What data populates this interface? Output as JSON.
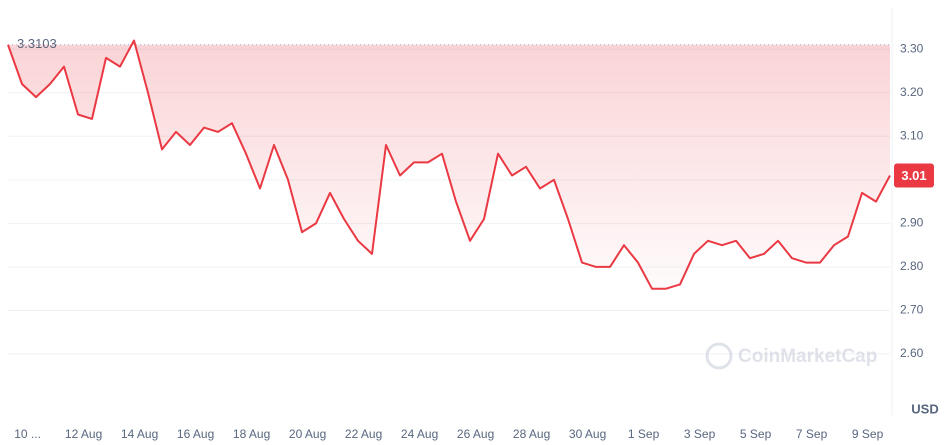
{
  "chart_data": {
    "type": "line",
    "watermark": "CoinMarketCap",
    "currency": "USD",
    "color": "#ea3943",
    "values": [
      3.31,
      3.22,
      3.19,
      3.22,
      3.26,
      3.15,
      3.14,
      3.28,
      3.26,
      3.32,
      3.2,
      3.07,
      3.11,
      3.08,
      3.12,
      3.11,
      3.13,
      3.06,
      2.98,
      3.08,
      3.0,
      2.88,
      2.9,
      2.97,
      2.91,
      2.86,
      2.83,
      3.08,
      3.01,
      3.04,
      3.04,
      3.06,
      2.95,
      2.86,
      2.91,
      3.06,
      3.01,
      3.03,
      2.98,
      3.0,
      2.91,
      2.81,
      2.8,
      2.8,
      2.85,
      2.81,
      2.75,
      2.75,
      2.76,
      2.83,
      2.86,
      2.85,
      2.86,
      2.82,
      2.83,
      2.86,
      2.82,
      2.81,
      2.81,
      2.85,
      2.87,
      2.97,
      2.95,
      3.01
    ],
    "reference_value": 3.3103,
    "xlim": [
      0,
      63
    ],
    "xticks": [
      {
        "value": 1.4,
        "label": "10 ..."
      },
      {
        "value": 5.4,
        "label": "12 Aug"
      },
      {
        "value": 9.4,
        "label": "14 Aug"
      },
      {
        "value": 13.4,
        "label": "16 Aug"
      },
      {
        "value": 17.4,
        "label": "18 Aug"
      },
      {
        "value": 21.4,
        "label": "20 Aug"
      },
      {
        "value": 25.4,
        "label": "22 Aug"
      },
      {
        "value": 29.4,
        "label": "24 Aug"
      },
      {
        "value": 33.4,
        "label": "26 Aug"
      },
      {
        "value": 37.4,
        "label": "28 Aug"
      },
      {
        "value": 41.4,
        "label": "30 Aug"
      },
      {
        "value": 45.4,
        "label": "1 Sep"
      },
      {
        "value": 49.4,
        "label": "3 Sep"
      },
      {
        "value": 53.4,
        "label": "5 Sep"
      },
      {
        "value": 57.4,
        "label": "7 Sep"
      },
      {
        "value": 61.4,
        "label": "9 Sep"
      }
    ],
    "ylim": [
      2.46,
      3.39
    ],
    "yticks": [
      {
        "value": 2.6,
        "label": "2.60"
      },
      {
        "value": 2.7,
        "label": "2.70"
      },
      {
        "value": 2.8,
        "label": "2.80"
      },
      {
        "value": 2.9,
        "label": "2.90"
      },
      {
        "value": 3.0,
        "label": "3.00"
      },
      {
        "value": 3.1,
        "label": "3.10"
      },
      {
        "value": 3.2,
        "label": "3.20"
      },
      {
        "value": 3.3,
        "label": "3.30"
      }
    ],
    "grid": true
  }
}
